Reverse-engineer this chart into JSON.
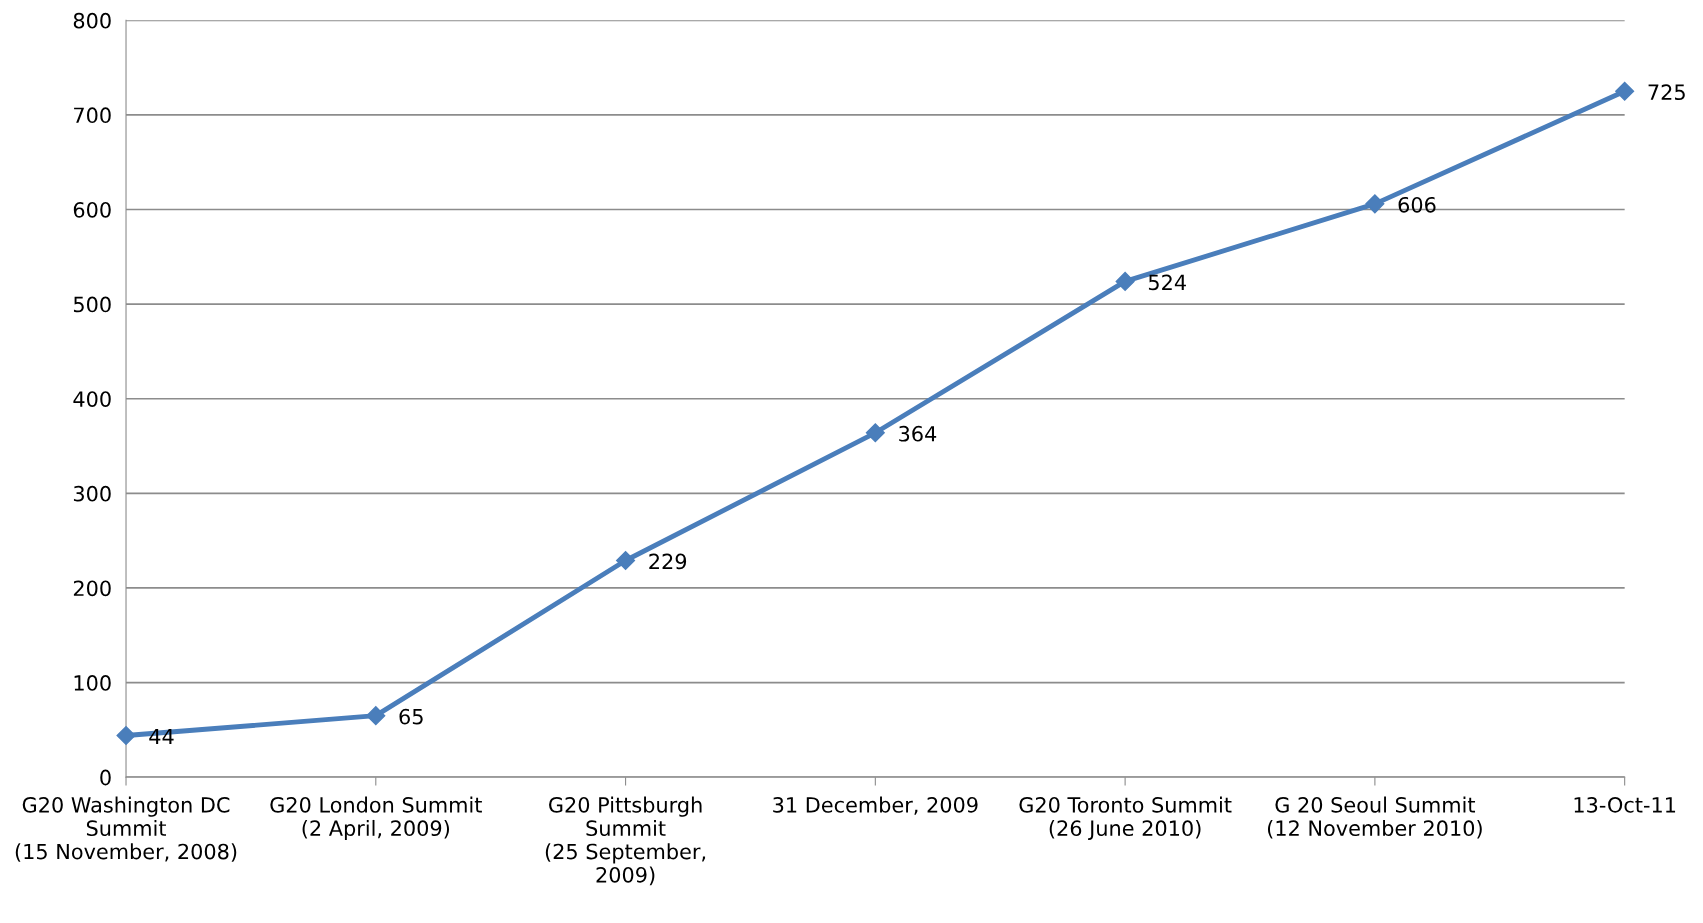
{
  "chart_data": {
    "type": "line",
    "categories": [
      "G20 Washington DC\nSummit\n(15 November, 2008)",
      "G20 London Summit\n(2 April, 2009)",
      "G20 Pittsburgh\nSummit\n(25 September,\n2009)",
      "31 December, 2009",
      "G20 Toronto Summit\n(26 June 2010)",
      "G 20 Seoul Summit\n(12 November 2010)",
      "13-Oct-11"
    ],
    "series": [
      {
        "color": "#4a7ebb",
        "values": [
          44,
          65,
          229,
          364,
          524,
          606,
          725
        ]
      }
    ],
    "ylim": [
      0,
      800
    ],
    "yticks": [
      0,
      100,
      200,
      300,
      400,
      500,
      600,
      700,
      800
    ],
    "grid": "y",
    "marker": "diamond",
    "line_style": "solid",
    "data_labels": true,
    "legend": false
  }
}
